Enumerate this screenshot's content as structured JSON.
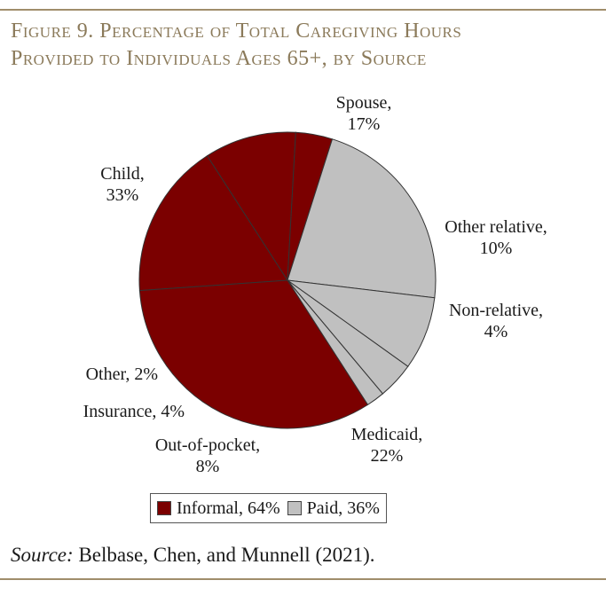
{
  "title": {
    "line1": "Figure 9. Percentage of Total Caregiving Hours",
    "line2": "Provided to Individuals Ages 65+, by Source"
  },
  "source": {
    "prefix": "Source:",
    "text": " Belbase, Chen, and Munnell (2021)."
  },
  "colors": {
    "informal": "#7b0000",
    "paid": "#c0c0c0",
    "rule": "#a08d6b",
    "title": "#8b7a5a"
  },
  "chart_data": {
    "type": "pie",
    "slices": [
      {
        "label": "Spouse,",
        "value_label": "17%",
        "value": 17,
        "group": "informal"
      },
      {
        "label": "Other relative,",
        "value_label": "10%",
        "value": 10,
        "group": "informal"
      },
      {
        "label": "Non-relative,",
        "value_label": "4%",
        "value": 4,
        "group": "informal"
      },
      {
        "label": "Medicaid,",
        "value_label": "22%",
        "value": 22,
        "group": "paid"
      },
      {
        "label": "Out-of-pocket,",
        "value_label": "8%",
        "value": 8,
        "group": "paid"
      },
      {
        "label": "Insurance, 4%",
        "value_label": "",
        "value": 4,
        "group": "paid"
      },
      {
        "label": "Other, 2%",
        "value_label": "",
        "value": 2,
        "group": "paid"
      },
      {
        "label": "Child,",
        "value_label": "33%",
        "value": 33,
        "group": "informal"
      }
    ],
    "legend": [
      {
        "label": "Informal, 64%",
        "group": "informal"
      },
      {
        "label": "Paid, 36%",
        "group": "paid"
      }
    ],
    "legend_position": "bottom"
  }
}
